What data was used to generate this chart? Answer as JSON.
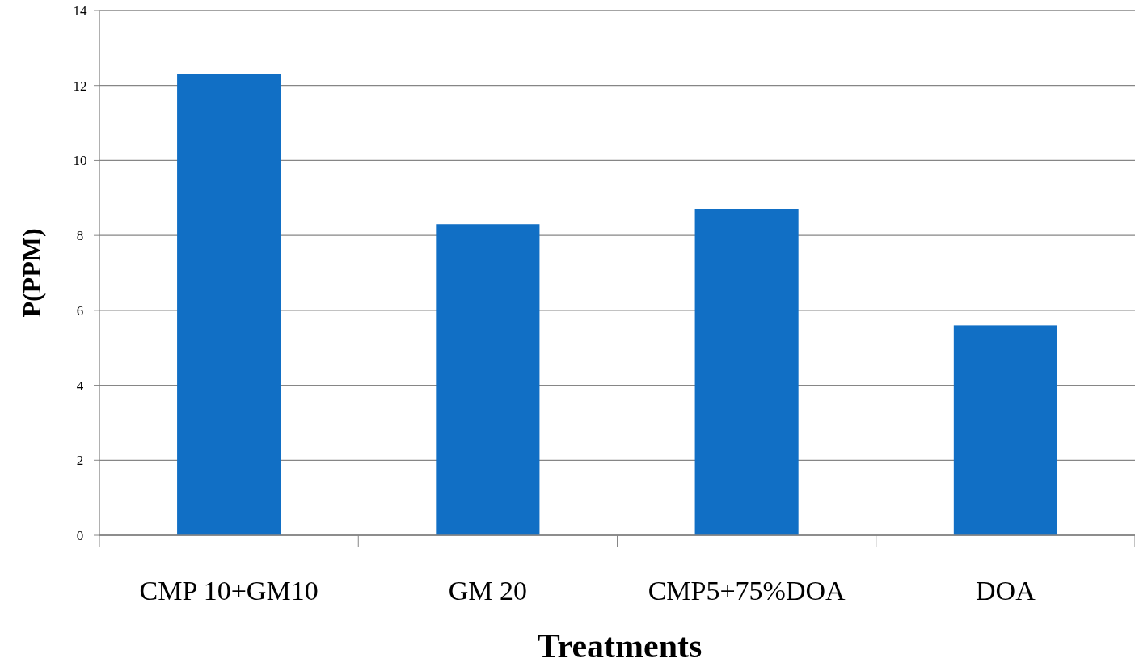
{
  "chart_data": {
    "type": "bar",
    "xlabel": "Treatments",
    "ylabel": "P(PPM)",
    "categories": [
      "CMP 10+GM10",
      "GM 20",
      "CMP5+75%DOA",
      "DOA"
    ],
    "values": [
      12.3,
      8.3,
      8.7,
      5.6
    ],
    "color": "#116fc5",
    "ylim": [
      0,
      14
    ],
    "yticks": [
      0,
      2,
      4,
      6,
      8,
      10,
      12,
      14
    ],
    "grid": "y"
  }
}
